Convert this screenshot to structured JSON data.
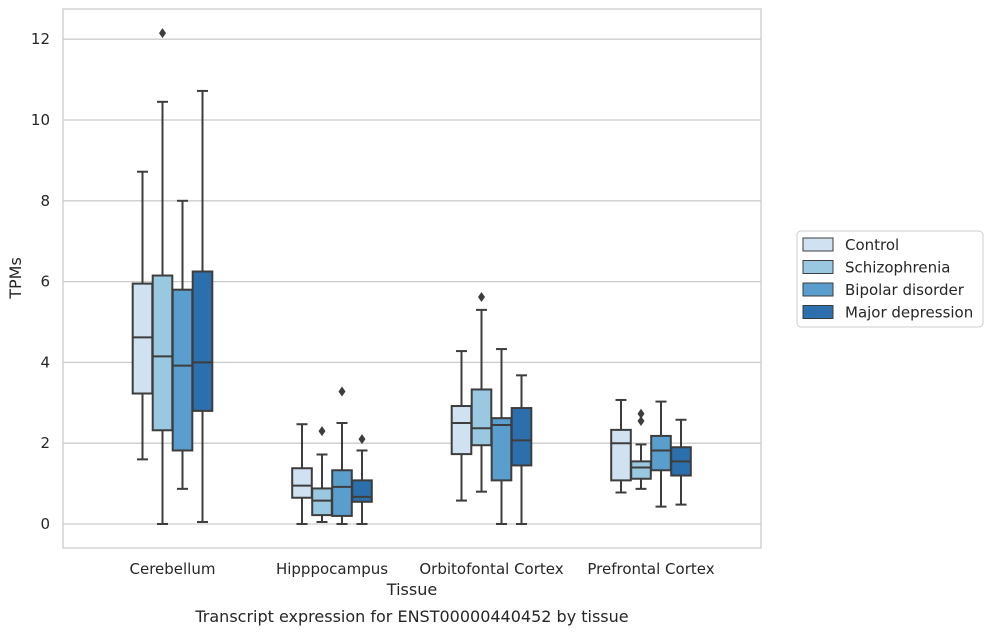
{
  "chart_data": {
    "type": "boxplot",
    "caption": "Transcript expression for ENST00000440452 by tissue",
    "xlabel": "Tissue",
    "ylabel": "TPMs",
    "ylim": [
      -0.6,
      12.7
    ],
    "yticks": [
      0,
      2,
      4,
      6,
      8,
      10,
      12
    ],
    "grid": true,
    "legend_position": "right",
    "categories": [
      "Cerebellum",
      "Hipppocampus",
      "Orbitofontal Cortex",
      "Prefrontal Cortex"
    ],
    "series": [
      {
        "name": "Control",
        "color": "#d0e1f2",
        "boxes": [
          {
            "whisker_low": 1.6,
            "q1": 3.23,
            "median": 4.62,
            "q3": 5.95,
            "whisker_high": 8.72,
            "outliers": []
          },
          {
            "whisker_low": 0.0,
            "q1": 0.65,
            "median": 0.95,
            "q3": 1.38,
            "whisker_high": 2.47,
            "outliers": []
          },
          {
            "whisker_low": 0.58,
            "q1": 1.73,
            "median": 2.5,
            "q3": 2.92,
            "whisker_high": 4.28,
            "outliers": []
          },
          {
            "whisker_low": 0.78,
            "q1": 1.08,
            "median": 2.0,
            "q3": 2.33,
            "whisker_high": 3.07,
            "outliers": []
          }
        ]
      },
      {
        "name": "Schizophrenia",
        "color": "#9ac8e0",
        "boxes": [
          {
            "whisker_low": 0.0,
            "q1": 2.32,
            "median": 4.15,
            "q3": 6.15,
            "whisker_high": 10.45,
            "outliers": [
              12.15
            ]
          },
          {
            "whisker_low": 0.05,
            "q1": 0.22,
            "median": 0.58,
            "q3": 0.88,
            "whisker_high": 1.72,
            "outliers": [
              2.3
            ]
          },
          {
            "whisker_low": 0.8,
            "q1": 1.95,
            "median": 2.37,
            "q3": 3.33,
            "whisker_high": 5.3,
            "outliers": [
              5.62
            ]
          },
          {
            "whisker_low": 0.87,
            "q1": 1.12,
            "median": 1.4,
            "q3": 1.55,
            "whisker_high": 1.97,
            "outliers": [
              2.55,
              2.73
            ]
          }
        ]
      },
      {
        "name": "Bipolar disorder",
        "color": "#5a9ecd",
        "boxes": [
          {
            "whisker_low": 0.87,
            "q1": 1.82,
            "median": 3.92,
            "q3": 5.8,
            "whisker_high": 8.0,
            "outliers": []
          },
          {
            "whisker_low": 0.0,
            "q1": 0.2,
            "median": 0.92,
            "q3": 1.33,
            "whisker_high": 2.5,
            "outliers": [
              3.28
            ]
          },
          {
            "whisker_low": 0.0,
            "q1": 1.08,
            "median": 2.45,
            "q3": 2.62,
            "whisker_high": 4.33,
            "outliers": []
          },
          {
            "whisker_low": 0.43,
            "q1": 1.33,
            "median": 1.82,
            "q3": 2.18,
            "whisker_high": 3.03,
            "outliers": []
          }
        ]
      },
      {
        "name": "Major depression",
        "color": "#2c6fad",
        "boxes": [
          {
            "whisker_low": 0.05,
            "q1": 2.8,
            "median": 4.0,
            "q3": 6.25,
            "whisker_high": 10.72,
            "outliers": []
          },
          {
            "whisker_low": 0.0,
            "q1": 0.55,
            "median": 0.67,
            "q3": 1.08,
            "whisker_high": 1.82,
            "outliers": [
              2.1
            ]
          },
          {
            "whisker_low": 0.0,
            "q1": 1.45,
            "median": 2.07,
            "q3": 2.87,
            "whisker_high": 3.68,
            "outliers": []
          },
          {
            "whisker_low": 0.48,
            "q1": 1.2,
            "median": 1.55,
            "q3": 1.9,
            "whisker_high": 2.58,
            "outliers": []
          }
        ]
      }
    ]
  }
}
